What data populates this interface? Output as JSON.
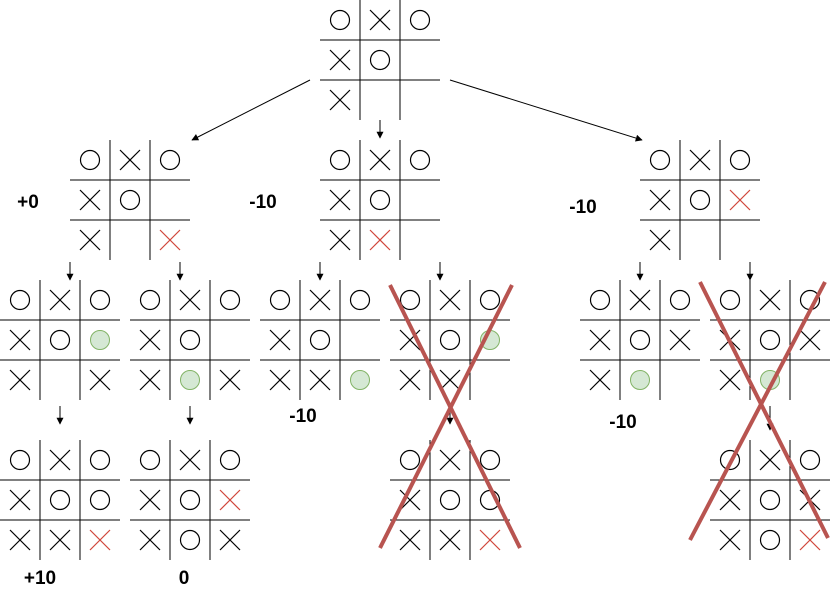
{
  "boards": [
    {
      "id": "root",
      "cells": [
        "O",
        "X",
        "O",
        "X",
        "O",
        "",
        "X",
        "",
        ""
      ]
    },
    {
      "id": "a",
      "cells": [
        "O",
        "X",
        "O",
        "X",
        "O",
        "",
        "X",
        "",
        "x"
      ]
    },
    {
      "id": "b",
      "cells": [
        "O",
        "X",
        "O",
        "X",
        "O",
        "",
        "X",
        "x",
        ""
      ]
    },
    {
      "id": "c",
      "cells": [
        "O",
        "X",
        "O",
        "X",
        "O",
        "x",
        "X",
        "",
        ""
      ]
    },
    {
      "id": "a1",
      "cells": [
        "O",
        "X",
        "O",
        "X",
        "O",
        "g",
        "X",
        "",
        "X"
      ]
    },
    {
      "id": "a2",
      "cells": [
        "O",
        "X",
        "O",
        "X",
        "O",
        "",
        "X",
        "g",
        "X"
      ]
    },
    {
      "id": "b1",
      "cells": [
        "O",
        "X",
        "O",
        "X",
        "O",
        "",
        "X",
        "X",
        "g"
      ]
    },
    {
      "id": "b2",
      "cells": [
        "O",
        "X",
        "O",
        "X",
        "O",
        "g",
        "X",
        "X",
        ""
      ]
    },
    {
      "id": "c1",
      "cells": [
        "O",
        "X",
        "O",
        "X",
        "O",
        "X",
        "X",
        "g",
        ""
      ]
    },
    {
      "id": "c2",
      "cells": [
        "O",
        "X",
        "O",
        "X",
        "O",
        "X",
        "X",
        "g",
        ""
      ]
    },
    {
      "id": "a1a",
      "cells": [
        "O",
        "X",
        "O",
        "X",
        "O",
        "O",
        "X",
        "X",
        "x"
      ]
    },
    {
      "id": "a2a",
      "cells": [
        "O",
        "X",
        "O",
        "X",
        "O",
        "x",
        "X",
        "O",
        "X"
      ]
    },
    {
      "id": "b2a",
      "cells": [
        "O",
        "X",
        "O",
        "X",
        "O",
        "O",
        "X",
        "X",
        "x"
      ]
    },
    {
      "id": "c2a",
      "cells": [
        "O",
        "X",
        "O",
        "X",
        "O",
        "X",
        "X",
        "O",
        "x"
      ]
    }
  ],
  "scores": [
    {
      "id": "a",
      "text": "+0"
    },
    {
      "id": "b",
      "text": "-10"
    },
    {
      "id": "c",
      "text": "-10"
    },
    {
      "id": "b1",
      "text": "-10"
    },
    {
      "id": "c1",
      "text": "-10"
    },
    {
      "id": "a1a",
      "text": "+10"
    },
    {
      "id": "a2a",
      "text": "0"
    }
  ],
  "crossed_out": [
    "b2",
    "c2"
  ],
  "colors": {
    "line": "#000000",
    "red_mark": "#d0453a",
    "green_fill": "#d5e8d4",
    "green_stroke": "#82b366",
    "cross_out": "#b85450"
  }
}
